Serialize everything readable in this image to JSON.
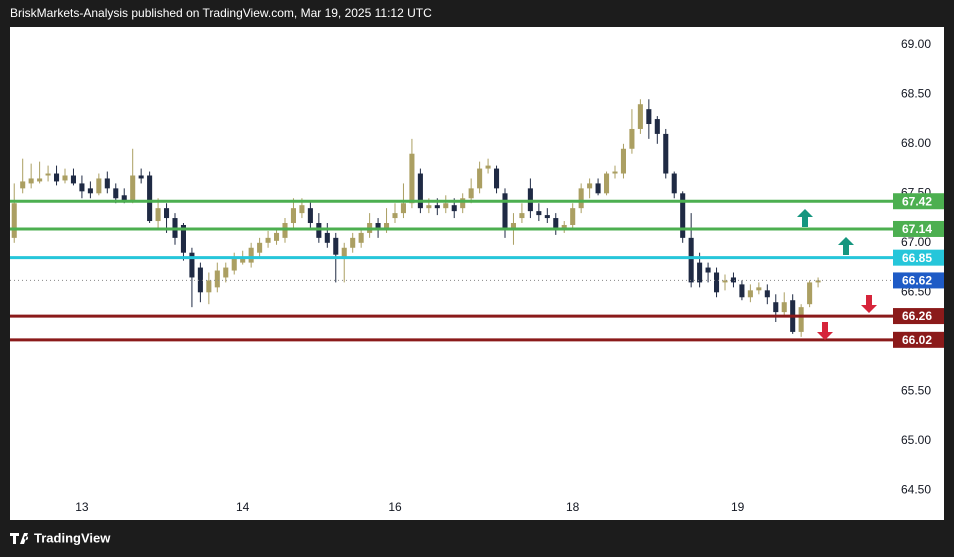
{
  "header": "BriskMarkets-Analysis published on TradingView.com, Mar 19, 2025 11:12 UTC",
  "footer": "TradingView",
  "chart_data": {
    "type": "candlestick",
    "up_color": "#ab9f62",
    "down_color": "#1f2a44",
    "ylim": [
      64.2,
      69.18
    ],
    "yticks": [
      {
        "value": 69,
        "label": "69.00"
      },
      {
        "value": 68.5,
        "label": "68.50"
      },
      {
        "value": 68,
        "label": "68.00"
      },
      {
        "value": 67.5,
        "label": "67.50"
      },
      {
        "value": 67,
        "label": "67.00"
      },
      {
        "value": 66.5,
        "label": "66.50"
      },
      {
        "value": 65.5,
        "label": "65.50"
      },
      {
        "value": 65,
        "label": "65.00"
      },
      {
        "value": 64.5,
        "label": "64.50"
      }
    ],
    "xlim": [
      -0.5,
      103.5
    ],
    "xticks": [
      {
        "value": 8,
        "label": "13"
      },
      {
        "value": 27,
        "label": "14"
      },
      {
        "value": 45,
        "label": "16"
      },
      {
        "value": 66,
        "label": "18"
      },
      {
        "value": 85.5,
        "label": "19"
      }
    ],
    "open": [
      67.05,
      67.55,
      67.6,
      67.62,
      67.68,
      67.7,
      67.63,
      67.68,
      67.6,
      67.55,
      67.5,
      67.65,
      67.55,
      67.48,
      67.42,
      67.68,
      67.68,
      67.22,
      67.35,
      67.25,
      67.18,
      66.9,
      66.75,
      66.5,
      66.55,
      66.65,
      66.72,
      66.8,
      66.8,
      66.9,
      67.0,
      67.02,
      67.05,
      67.2,
      67.3,
      67.35,
      67.2,
      67.1,
      67.05,
      66.85,
      66.95,
      67.0,
      67.1,
      67.2,
      67.15,
      67.25,
      67.3,
      67.4,
      67.7,
      67.35,
      67.38,
      67.35,
      67.38,
      67.35,
      67.45,
      67.55,
      67.75,
      67.75,
      67.5,
      67.15,
      67.25,
      67.55,
      67.32,
      67.28,
      67.25,
      67.15,
      67.18,
      67.35,
      67.55,
      67.6,
      67.5,
      67.7,
      67.7,
      67.95,
      68.15,
      68.35,
      68.25,
      68.1,
      67.7,
      67.5,
      67.05,
      66.8,
      66.75,
      66.7,
      66.6,
      66.65,
      66.58,
      66.45,
      66.52,
      66.52,
      66.4,
      66.3,
      66.42,
      66.1,
      66.38,
      66.6
    ],
    "high": [
      67.6,
      67.85,
      67.8,
      67.82,
      67.78,
      67.78,
      67.75,
      67.75,
      67.68,
      67.62,
      67.7,
      67.72,
      67.6,
      67.55,
      67.95,
      67.75,
      67.72,
      67.45,
      67.4,
      67.3,
      67.2,
      66.95,
      66.8,
      66.7,
      66.8,
      66.8,
      66.9,
      66.92,
      67.0,
      67.05,
      67.12,
      67.15,
      67.25,
      67.45,
      67.45,
      67.42,
      67.3,
      67.2,
      67.1,
      67.0,
      67.1,
      67.15,
      67.3,
      67.25,
      67.35,
      67.4,
      67.6,
      68.05,
      67.75,
      67.45,
      67.45,
      67.48,
      67.45,
      67.5,
      67.65,
      67.82,
      67.85,
      67.78,
      67.55,
      67.3,
      67.4,
      67.65,
      67.4,
      67.35,
      67.3,
      67.22,
      67.4,
      67.6,
      67.65,
      67.65,
      67.72,
      67.78,
      68.0,
      68.35,
      68.45,
      68.45,
      68.28,
      68.15,
      67.72,
      67.52,
      67.3,
      66.9,
      66.8,
      66.75,
      66.68,
      66.7,
      66.62,
      66.58,
      66.6,
      66.58,
      66.48,
      66.5,
      66.48,
      66.38,
      66.62,
      66.65
    ],
    "low": [
      67.0,
      67.5,
      67.55,
      67.6,
      67.62,
      67.58,
      67.6,
      67.58,
      67.45,
      67.45,
      67.48,
      67.5,
      67.4,
      67.4,
      67.4,
      67.6,
      67.2,
      67.15,
      67.1,
      66.98,
      66.82,
      66.35,
      66.4,
      66.38,
      66.5,
      66.6,
      66.68,
      66.78,
      66.75,
      66.85,
      66.95,
      66.98,
      67.0,
      67.15,
      67.25,
      67.15,
      67.0,
      66.95,
      66.6,
      66.6,
      66.9,
      66.95,
      67.05,
      67.05,
      67.1,
      67.2,
      67.25,
      67.35,
      67.3,
      67.3,
      67.28,
      67.3,
      67.25,
      67.3,
      67.4,
      67.5,
      67.7,
      67.5,
      67.05,
      66.98,
      67.2,
      67.25,
      67.22,
      67.2,
      67.08,
      67.1,
      67.15,
      67.3,
      67.45,
      67.48,
      67.48,
      67.65,
      67.65,
      67.9,
      68.1,
      68.05,
      68.0,
      67.65,
      67.45,
      67.0,
      66.55,
      66.55,
      66.6,
      66.45,
      66.52,
      66.55,
      66.42,
      66.4,
      66.48,
      66.38,
      66.2,
      66.25,
      66.08,
      66.05,
      66.35,
      66.55
    ],
    "close": [
      67.4,
      67.62,
      67.65,
      67.65,
      67.7,
      67.62,
      67.68,
      67.6,
      67.52,
      67.5,
      67.65,
      67.55,
      67.45,
      67.42,
      67.68,
      67.65,
      67.22,
      67.35,
      67.25,
      67.05,
      66.9,
      66.65,
      66.5,
      66.62,
      66.72,
      66.75,
      66.85,
      66.85,
      66.95,
      67.0,
      67.05,
      67.1,
      67.2,
      67.35,
      67.38,
      67.2,
      67.05,
      67.0,
      66.88,
      66.95,
      67.05,
      67.1,
      67.2,
      67.15,
      67.2,
      67.3,
      67.4,
      67.9,
      67.35,
      67.38,
      67.35,
      67.4,
      67.32,
      67.45,
      67.55,
      67.75,
      67.78,
      67.55,
      67.15,
      67.2,
      67.3,
      67.32,
      67.28,
      67.25,
      67.15,
      67.18,
      67.35,
      67.55,
      67.6,
      67.5,
      67.7,
      67.72,
      67.95,
      68.15,
      68.4,
      68.2,
      68.1,
      67.7,
      67.5,
      67.05,
      66.6,
      66.6,
      66.7,
      66.5,
      66.62,
      66.6,
      66.45,
      66.52,
      66.55,
      66.45,
      66.3,
      66.4,
      66.1,
      66.35,
      66.6,
      66.62
    ],
    "levels": [
      {
        "value": 67.42,
        "color": "#4caf50",
        "line_style": "solid"
      },
      {
        "value": 67.14,
        "color": "#4caf50",
        "line_style": "solid"
      },
      {
        "value": 66.85,
        "color": "#26c6da",
        "line_style": "solid"
      },
      {
        "value": 66.62,
        "color": "#1e5bc6",
        "line_style": "dotted"
      },
      {
        "value": 66.26,
        "color": "#8b1a1a",
        "line_style": "solid"
      },
      {
        "value": 66.02,
        "color": "#8b1a1a",
        "line_style": "solid"
      }
    ]
  }
}
